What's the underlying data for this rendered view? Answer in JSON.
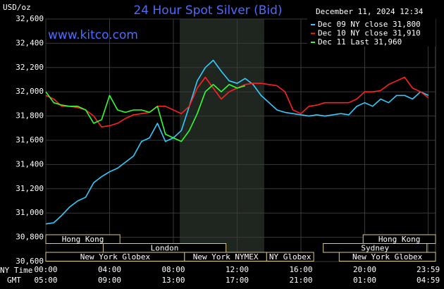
{
  "chart_data": {
    "type": "line",
    "title": "24 Hour Spot Silver (Bid)",
    "subtitle": "December 11, 2024 12:34",
    "watermark": "www.kitco.com",
    "y_label": "USD/oz",
    "x_row_labels": [
      "NY Time",
      "GMT"
    ],
    "x": [
      0,
      0.5,
      1,
      1.5,
      2,
      2.5,
      3,
      3.5,
      4,
      4.5,
      5,
      5.5,
      6,
      6.5,
      7,
      7.5,
      8,
      8.5,
      9,
      9.5,
      10,
      10.5,
      11,
      11.5,
      12,
      12.5,
      13,
      13.5,
      14,
      14.5,
      15,
      15.5,
      16,
      16.5,
      17,
      17.5,
      18,
      18.5,
      19,
      19.5,
      20,
      20.5,
      21,
      21.5,
      22,
      22.5,
      23,
      23.5,
      24
    ],
    "xlim": [
      0,
      24
    ],
    "xticks": [
      {
        "value": 0,
        "label": "00:00",
        "gmt": "05:00"
      },
      {
        "value": 4,
        "label": "04:00",
        "gmt": "09:00"
      },
      {
        "value": 8,
        "label": "08:00",
        "gmt": "13:00"
      },
      {
        "value": 12,
        "label": "12:00",
        "gmt": "17:00"
      },
      {
        "value": 16,
        "label": "16:00",
        "gmt": "21:00"
      },
      {
        "value": 20,
        "label": "20:00",
        "gmt": "01:00"
      },
      {
        "value": 23.98,
        "label": "23:59",
        "gmt": "04:59"
      }
    ],
    "ylim": [
      30600,
      32600
    ],
    "yticks": [
      {
        "value": 30600,
        "label": "30,600"
      },
      {
        "value": 30800,
        "label": "30,800"
      },
      {
        "value": 31000,
        "label": "31,000"
      },
      {
        "value": 31200,
        "label": "31,200"
      },
      {
        "value": 31400,
        "label": "31,400"
      },
      {
        "value": 31600,
        "label": "31,600"
      },
      {
        "value": 31800,
        "label": "31,800"
      },
      {
        "value": 32000,
        "label": "32,000"
      },
      {
        "value": 32200,
        "label": "32,200"
      },
      {
        "value": 32400,
        "label": "32,400"
      },
      {
        "value": 32600,
        "label": "32,600"
      }
    ],
    "grid": true,
    "legend": "top-right",
    "shade": [
      8.4,
      13.7
    ],
    "sessions": [
      {
        "name": "Hong Kong",
        "row": 0,
        "start": 0,
        "end": 4.65
      },
      {
        "name": "Hong Kong",
        "row": 0,
        "start": 19.9,
        "end": 24.45
      },
      {
        "name": "London",
        "row": 1,
        "start": 3.6,
        "end": 11.3
      },
      {
        "name": "Sydney",
        "row": 1,
        "start": 17.4,
        "end": 23.9
      },
      {
        "name": "New York Globex",
        "row": 2,
        "start": 0,
        "end": 8.7
      },
      {
        "name": "New York NYMEX",
        "row": 2,
        "start": 8.7,
        "end": 13.85
      },
      {
        "name": "NY Globex",
        "row": 2,
        "start": 13.85,
        "end": 16.8
      },
      {
        "name": "New York Globex",
        "row": 2,
        "start": 18.4,
        "end": 24.45
      }
    ],
    "series": [
      {
        "name": "Dec 09 NY close 31,800",
        "color": "#33ccff",
        "values": [
          30910,
          30920,
          30980,
          31050,
          31100,
          31130,
          31250,
          31300,
          31340,
          31370,
          31420,
          31470,
          31590,
          31620,
          31740,
          31590,
          31620,
          31680,
          31880,
          32090,
          32200,
          32260,
          32170,
          32090,
          32070,
          32110,
          32060,
          31970,
          31910,
          31850,
          31830,
          31820,
          31810,
          31800,
          31810,
          31800,
          31810,
          31820,
          31810,
          31880,
          31910,
          31880,
          31940,
          31910,
          31970,
          31970,
          31940,
          32000,
          31970
        ]
      },
      {
        "name": "Dec 10 NY close 31,910",
        "color": "#ff2020",
        "values": [
          31970,
          31940,
          31880,
          31880,
          31870,
          31850,
          31800,
          31710,
          31720,
          31740,
          31780,
          31810,
          31820,
          31830,
          31880,
          31880,
          31850,
          31820,
          31880,
          32030,
          32120,
          32030,
          31940,
          32000,
          32030,
          32060,
          32070,
          32070,
          32060,
          32050,
          32000,
          31850,
          31820,
          31880,
          31890,
          31910,
          31910,
          31910,
          31910,
          31940,
          32000,
          32000,
          32010,
          32060,
          32090,
          32120,
          32030,
          32000,
          31950
        ]
      },
      {
        "name": "Dec 11 Last 31,960",
        "color": "#33ff33",
        "values": [
          32000,
          31910,
          31890,
          31880,
          31880,
          31850,
          31740,
          31770,
          31970,
          31850,
          31830,
          31850,
          31850,
          31830,
          31880,
          31650,
          31620,
          31590,
          31680,
          31820,
          32000,
          32060,
          32000,
          32060,
          32030,
          32050,
          null,
          null,
          null,
          null,
          null,
          null,
          null,
          null,
          null,
          null,
          null,
          null,
          null,
          null,
          null,
          null,
          null,
          null,
          null,
          null,
          null,
          null,
          null
        ]
      }
    ]
  }
}
